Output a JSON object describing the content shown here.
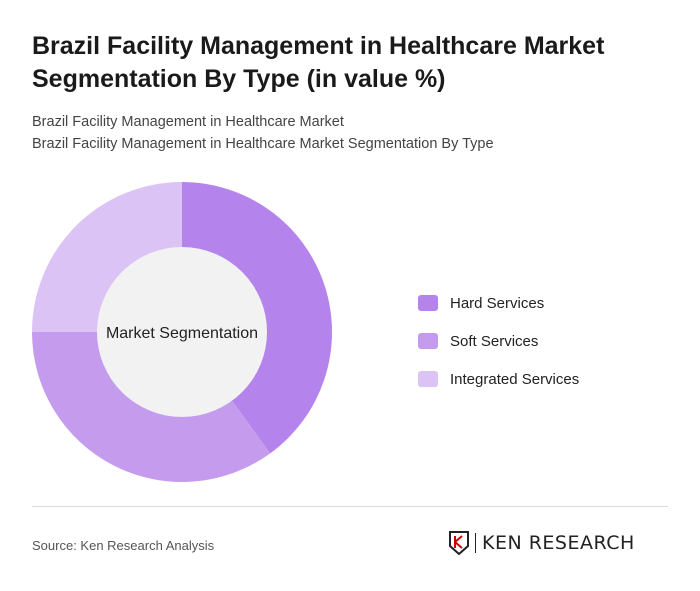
{
  "title": "Brazil Facility Management in Healthcare Market Segmentation By Type (in value %)",
  "subtitle1": "Brazil Facility Management in Healthcare Market",
  "subtitle2": "Brazil Facility Management in Healthcare Market Segmentation By Type",
  "source": "Source: Ken Research Analysis",
  "logo": "KEN RESEARCH",
  "chart_data": {
    "type": "pie",
    "variant": "donut",
    "center_label": "Market Segmentation",
    "categories": [
      "Hard Services",
      "Soft Services",
      "Integrated Services"
    ],
    "values": [
      40,
      35,
      25
    ],
    "colors": [
      "#b583ec",
      "#c59ced",
      "#dcc3f5"
    ],
    "legend": "right"
  }
}
